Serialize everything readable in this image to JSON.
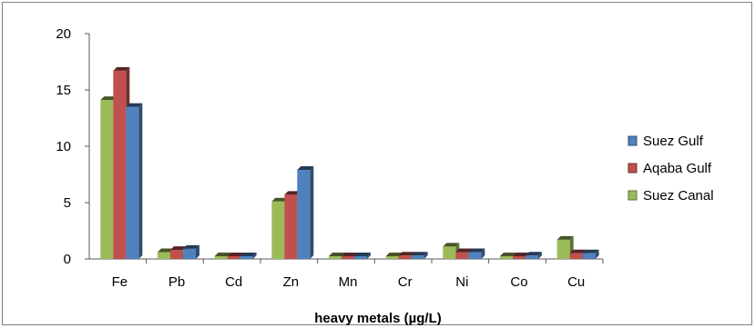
{
  "chart_data": {
    "type": "bar",
    "title": "",
    "xlabel": "heavy metals (µg/L)",
    "ylabel": "",
    "categories": [
      "Fe",
      "Pb",
      "Cd",
      "Zn",
      "Mn",
      "Cr",
      "Ni",
      "Co",
      "Cu"
    ],
    "ylim": [
      0,
      20
    ],
    "yticks": [
      "0",
      "5",
      "10",
      "15",
      "20"
    ],
    "grid": false,
    "legend_position": "right",
    "style": "3d-clustered",
    "series": [
      {
        "name": "Suez Canal",
        "color": "#9bbb59",
        "values": [
          14.1,
          0.6,
          0.1,
          5.1,
          0.0,
          0.1,
          1.1,
          0.1,
          1.7
        ]
      },
      {
        "name": "Aqaba Gulf",
        "color": "#c0504d",
        "values": [
          16.7,
          0.8,
          0.2,
          5.7,
          0.0,
          0.3,
          0.6,
          0.2,
          0.5
        ]
      },
      {
        "name": "Suez Gulf",
        "color": "#4f81bd",
        "values": [
          13.5,
          0.9,
          0.2,
          7.9,
          0.0,
          0.3,
          0.6,
          0.3,
          0.5
        ]
      }
    ],
    "legend_order": [
      "Suez Gulf",
      "Aqaba Gulf",
      "Suez Canal"
    ]
  }
}
